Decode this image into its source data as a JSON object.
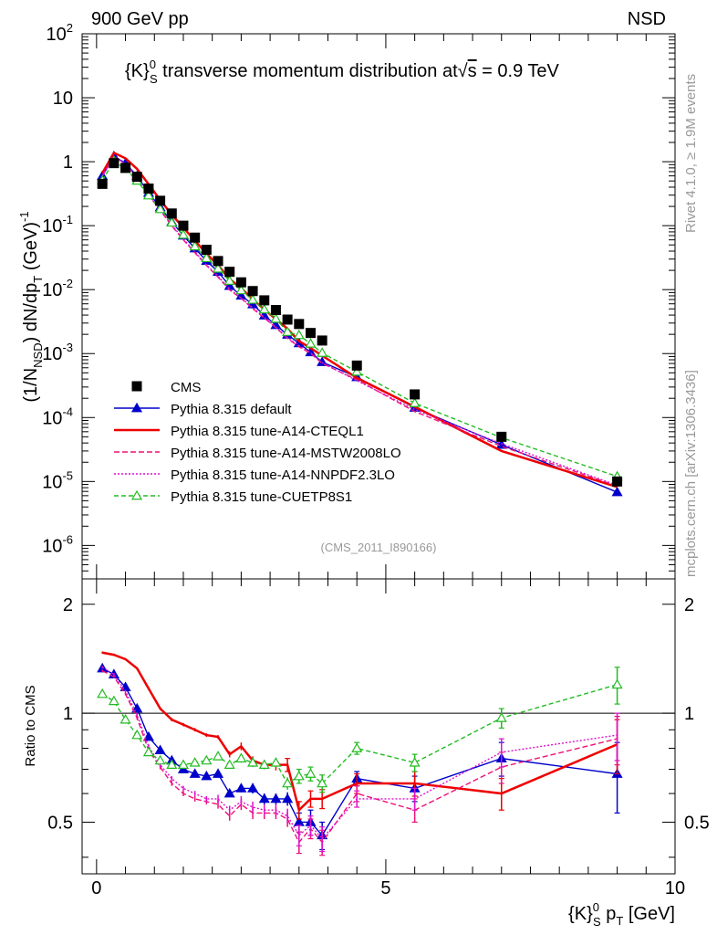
{
  "header": {
    "left": "900 GeV pp",
    "right": "NSD"
  },
  "side_text": {
    "rivet": "Rivet 4.1.0, ≥ 1.9M events",
    "mcplots": "mcplots.cern.ch [arXiv:1306.3436]"
  },
  "chart_data": {
    "type": "scatter",
    "title": "{K}⁰_S transverse momentum distribution at √s = 0.9 TeV",
    "title_main": "{K}",
    "title_sup": "0",
    "title_sub": "S",
    "title_rest": " transverse momentum distribution at",
    "title_sqrt": "√",
    "title_s": "s",
    "title_energy": " = 0.9 TeV",
    "analysis_tag": "(CMS_2011_I890166)",
    "ylabel": "(1/N_NSD) dN/dp_T (GeV)^-1",
    "ylabel_ratio": "Ratio to CMS",
    "xlabel": "{K}⁰_S p_T [GeV]",
    "xlim": [
      -0.25,
      10.0
    ],
    "ylim_log": [
      3e-07,
      100
    ],
    "ratio_ylim": [
      0.36,
      2.35
    ],
    "x_ticks": [
      "0",
      "5",
      "10"
    ],
    "x_tick_values": [
      0,
      5,
      10
    ],
    "y_ticks_main": [
      "10^-6",
      "10^-5",
      "10^-4",
      "10^-3",
      "10^-2",
      "10^-1",
      "1",
      "10",
      "10^2"
    ],
    "y_ticks_ratio": [
      "0.5",
      "1",
      "2"
    ],
    "y_tick_ratio_values": [
      0.5,
      1,
      2
    ],
    "x": [
      0.1,
      0.3,
      0.5,
      0.7,
      0.9,
      1.1,
      1.3,
      1.5,
      1.7,
      1.9,
      2.1,
      2.3,
      2.5,
      2.7,
      2.9,
      3.1,
      3.3,
      3.5,
      3.7,
      3.9,
      4.5,
      5.5,
      7.0,
      9.0
    ],
    "data": {
      "name": "CMS",
      "values": [
        0.45,
        0.95,
        0.8,
        0.58,
        0.38,
        0.245,
        0.155,
        0.1,
        0.065,
        0.042,
        0.028,
        0.019,
        0.013,
        0.0095,
        0.0068,
        0.0048,
        0.0034,
        0.0029,
        0.0021,
        0.0016,
        0.00065,
        0.00023,
        5e-05,
        1e-05
      ]
    },
    "series": [
      {
        "name": "Pythia 8.315 default",
        "color": "#0000cc",
        "dash": "",
        "marker": "triangle-filled",
        "ratio": [
          1.33,
          1.28,
          1.18,
          1.03,
          0.86,
          0.79,
          0.74,
          0.7,
          0.68,
          0.67,
          0.68,
          0.6,
          0.62,
          0.62,
          0.58,
          0.58,
          0.58,
          0.5,
          0.5,
          0.46,
          0.66,
          0.62,
          0.75,
          0.68
        ],
        "ratio_err": [
          0.01,
          0.01,
          0.01,
          0.01,
          0.01,
          0.01,
          0.01,
          0.01,
          0.01,
          0.01,
          0.01,
          0.01,
          0.015,
          0.02,
          0.02,
          0.02,
          0.025,
          0.03,
          0.04,
          0.04,
          0.03,
          0.05,
          0.08,
          0.15
        ]
      },
      {
        "name": "Pythia 8.315 tune-A14-CTEQL1",
        "color": "#ee0000",
        "dash": "",
        "marker": "none",
        "ratio": [
          1.47,
          1.45,
          1.41,
          1.33,
          1.17,
          1.03,
          0.96,
          0.93,
          0.9,
          0.87,
          0.86,
          0.77,
          0.81,
          0.74,
          0.72,
          0.72,
          0.72,
          0.54,
          0.58,
          0.58,
          0.64,
          0.64,
          0.6,
          0.82
        ],
        "ratio_err": [
          0.01,
          0.01,
          0.01,
          0.01,
          0.01,
          0.01,
          0.01,
          0.01,
          0.01,
          0.01,
          0.01,
          0.015,
          0.02,
          0.02,
          0.02,
          0.025,
          0.03,
          0.03,
          0.03,
          0.035,
          0.04,
          0.05,
          0.06,
          0.14
        ]
      },
      {
        "name": "Pythia 8.315 tune-A14-MSTW2008LO",
        "color": "#ee1177",
        "dash": "6,3",
        "marker": "none",
        "ratio": [
          1.31,
          1.26,
          1.13,
          0.97,
          0.79,
          0.71,
          0.64,
          0.6,
          0.58,
          0.57,
          0.56,
          0.52,
          0.56,
          0.53,
          0.53,
          0.53,
          0.51,
          0.44,
          0.48,
          0.44,
          0.6,
          0.54,
          0.71,
          0.85
        ],
        "ratio_err": [
          0.01,
          0.01,
          0.01,
          0.01,
          0.01,
          0.01,
          0.01,
          0.01,
          0.01,
          0.01,
          0.015,
          0.015,
          0.02,
          0.02,
          0.02,
          0.02,
          0.025,
          0.03,
          0.03,
          0.035,
          0.03,
          0.04,
          0.07,
          0.13
        ]
      },
      {
        "name": "Pythia 8.315 tune-A14-NNPDF2.3LO",
        "color": "#dd11cc",
        "dash": "2,2",
        "marker": "none",
        "ratio": [
          1.34,
          1.28,
          1.15,
          0.99,
          0.81,
          0.72,
          0.66,
          0.62,
          0.6,
          0.58,
          0.58,
          0.54,
          0.57,
          0.55,
          0.54,
          0.54,
          0.52,
          0.46,
          0.49,
          0.45,
          0.58,
          0.58,
          0.78,
          0.87
        ],
        "ratio_err": [
          0.01,
          0.01,
          0.01,
          0.01,
          0.01,
          0.01,
          0.01,
          0.01,
          0.01,
          0.01,
          0.015,
          0.015,
          0.02,
          0.02,
          0.02,
          0.02,
          0.025,
          0.03,
          0.03,
          0.035,
          0.03,
          0.04,
          0.07,
          0.13
        ]
      },
      {
        "name": "Pythia 8.315 tune-CUETP8S1",
        "color": "#22bb22",
        "dash": "5,3",
        "marker": "triangle-open",
        "ratio": [
          1.13,
          1.08,
          0.96,
          0.87,
          0.78,
          0.74,
          0.72,
          0.72,
          0.73,
          0.74,
          0.76,
          0.72,
          0.75,
          0.73,
          0.72,
          0.73,
          0.64,
          0.67,
          0.68,
          0.64,
          0.8,
          0.73,
          0.97,
          1.2
        ],
        "ratio_err": [
          0.01,
          0.01,
          0.01,
          0.01,
          0.01,
          0.01,
          0.01,
          0.01,
          0.01,
          0.01,
          0.015,
          0.015,
          0.02,
          0.02,
          0.02,
          0.02,
          0.025,
          0.03,
          0.03,
          0.035,
          0.03,
          0.04,
          0.06,
          0.14
        ]
      }
    ],
    "legend_position": "bottom-left"
  },
  "colors": {
    "data_marker": "#000000",
    "side_text": "#999999",
    "analysis_tag": "#999999"
  }
}
